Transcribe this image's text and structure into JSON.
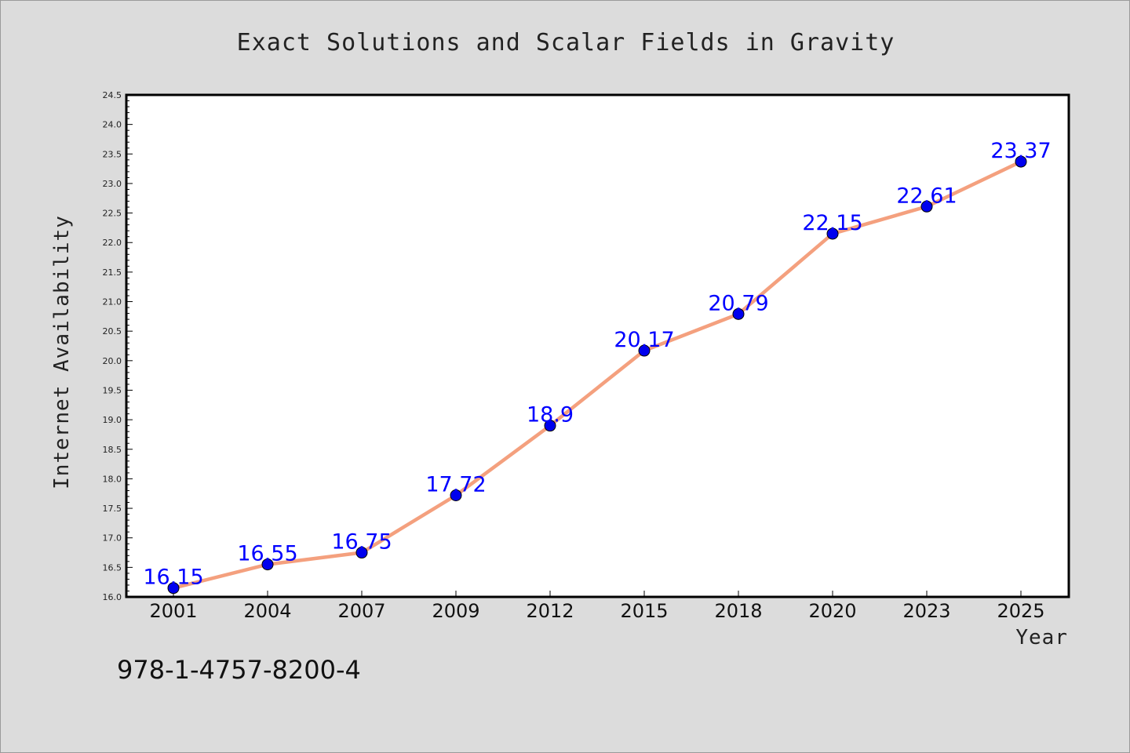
{
  "chart_data": {
    "type": "line",
    "title": "Exact Solutions and Scalar Fields in Gravity",
    "xlabel": "Year",
    "ylabel": "Internet Availability",
    "categories": [
      "2001",
      "2004",
      "2007",
      "2009",
      "2012",
      "2015",
      "2018",
      "2020",
      "2023",
      "2025"
    ],
    "series": [
      {
        "values": [
          16.15,
          16.55,
          16.75,
          17.72,
          18.9,
          20.17,
          20.79,
          22.15,
          22.61,
          23.37
        ],
        "labels": [
          "16.15",
          "16.55",
          "16.75",
          "17.72",
          "18.9",
          "20.17",
          "20.79",
          "22.15",
          "22.61",
          "23.37"
        ],
        "line_color": "#f4a07e",
        "marker_color": "#0000ee"
      }
    ],
    "ylim": [
      16.0,
      24.5
    ],
    "yticks": [
      "16.0",
      "16.5",
      "17.0",
      "17.5",
      "18.0",
      "18.5",
      "19.0",
      "19.5",
      "20.0",
      "20.5",
      "21.0",
      "21.5",
      "22.0",
      "22.5",
      "23.0",
      "23.5",
      "24.0",
      "24.5"
    ],
    "grid": false,
    "legend": "none"
  },
  "footer": {
    "isbn": "978-1-4757-8200-4"
  },
  "colors": {
    "background": "#dcdcdc",
    "plot_background": "#ffffff",
    "label_color": "#0000ff"
  }
}
